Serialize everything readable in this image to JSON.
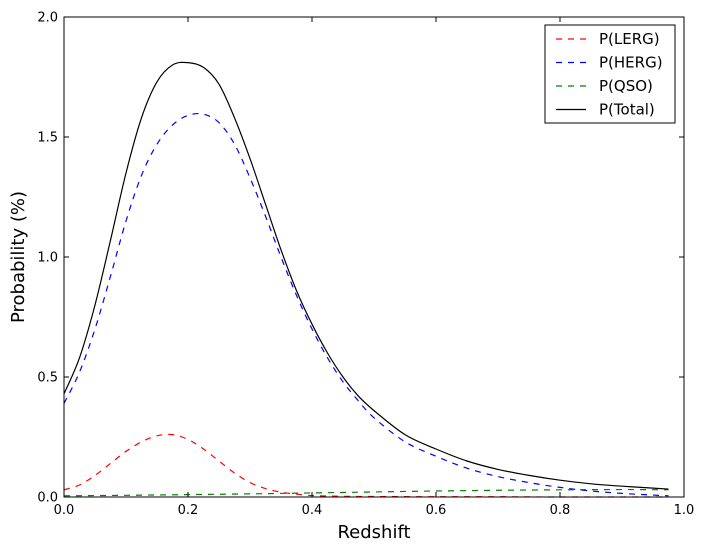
{
  "chart_data": {
    "type": "line",
    "title": "",
    "xlabel": "Redshift",
    "ylabel": "Probability (%)",
    "xlim": [
      0.0,
      1.0
    ],
    "ylim": [
      0.0,
      2.0
    ],
    "xticks": [
      0.0,
      0.2,
      0.4,
      0.6,
      0.8,
      1.0
    ],
    "yticks": [
      0.0,
      0.5,
      1.0,
      1.5,
      2.0
    ],
    "xtick_labels": [
      "0.0",
      "0.2",
      "0.4",
      "0.6",
      "0.8",
      "1.0"
    ],
    "ytick_labels": [
      "0.0",
      "0.5",
      "1.0",
      "1.5",
      "2.0"
    ],
    "grid": false,
    "legend_position": "top-right",
    "series": [
      {
        "name": "P(LERG)",
        "color": "#ff0000",
        "style": "dashed",
        "x": [
          0.0,
          0.025,
          0.05,
          0.075,
          0.1,
          0.125,
          0.15,
          0.175,
          0.2,
          0.225,
          0.25,
          0.275,
          0.3,
          0.325,
          0.35,
          0.375,
          0.4,
          0.45,
          0.5,
          0.6,
          0.7,
          0.8,
          0.9,
          0.975
        ],
        "y": [
          0.03,
          0.05,
          0.09,
          0.14,
          0.19,
          0.23,
          0.255,
          0.26,
          0.24,
          0.2,
          0.15,
          0.1,
          0.06,
          0.035,
          0.02,
          0.012,
          0.006,
          0.003,
          0.002,
          0.001,
          0.001,
          0.0,
          0.0,
          0.0
        ]
      },
      {
        "name": "P(HERG)",
        "color": "#0000ff",
        "style": "dashed",
        "x": [
          0.0,
          0.025,
          0.05,
          0.075,
          0.1,
          0.125,
          0.15,
          0.175,
          0.2,
          0.225,
          0.25,
          0.275,
          0.3,
          0.325,
          0.35,
          0.375,
          0.4,
          0.425,
          0.45,
          0.475,
          0.5,
          0.55,
          0.6,
          0.65,
          0.7,
          0.75,
          0.8,
          0.85,
          0.9,
          0.95,
          0.975
        ],
        "y": [
          0.39,
          0.52,
          0.7,
          0.92,
          1.15,
          1.34,
          1.47,
          1.55,
          1.59,
          1.595,
          1.56,
          1.47,
          1.33,
          1.17,
          1.0,
          0.84,
          0.7,
          0.58,
          0.48,
          0.4,
          0.33,
          0.23,
          0.17,
          0.12,
          0.085,
          0.06,
          0.04,
          0.025,
          0.015,
          0.008,
          0.005
        ]
      },
      {
        "name": "P(QSO)",
        "color": "#008000",
        "style": "dashed",
        "x": [
          0.0,
          0.1,
          0.2,
          0.3,
          0.4,
          0.5,
          0.6,
          0.7,
          0.8,
          0.9,
          0.975
        ],
        "y": [
          0.005,
          0.007,
          0.01,
          0.013,
          0.017,
          0.021,
          0.025,
          0.028,
          0.03,
          0.031,
          0.03
        ]
      },
      {
        "name": "P(Total)",
        "color": "#000000",
        "style": "solid",
        "x": [
          0.0,
          0.025,
          0.05,
          0.075,
          0.1,
          0.125,
          0.15,
          0.175,
          0.2,
          0.225,
          0.25,
          0.275,
          0.3,
          0.325,
          0.35,
          0.375,
          0.4,
          0.425,
          0.45,
          0.475,
          0.5,
          0.55,
          0.6,
          0.65,
          0.7,
          0.75,
          0.8,
          0.85,
          0.9,
          0.95,
          0.975
        ],
        "y": [
          0.43,
          0.58,
          0.8,
          1.07,
          1.35,
          1.58,
          1.73,
          1.8,
          1.81,
          1.79,
          1.72,
          1.58,
          1.41,
          1.22,
          1.03,
          0.86,
          0.72,
          0.6,
          0.5,
          0.42,
          0.36,
          0.26,
          0.2,
          0.15,
          0.115,
          0.09,
          0.07,
          0.055,
          0.045,
          0.037,
          0.033
        ]
      }
    ]
  }
}
